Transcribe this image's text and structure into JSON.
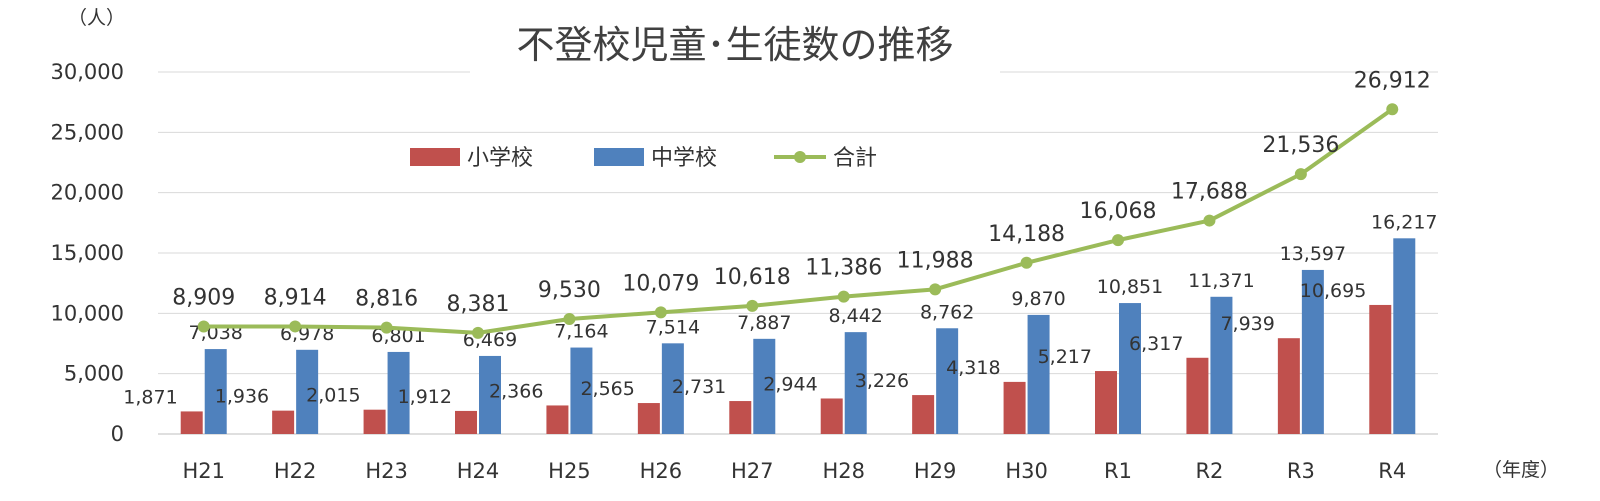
{
  "chart_data": {
    "type": "bar",
    "title": "不登校児童･生徒数の推移",
    "y_unit_label": "（人）",
    "x_unit_label": "（年度）",
    "categories": [
      "H21",
      "H22",
      "H23",
      "H24",
      "H25",
      "H26",
      "H27",
      "H28",
      "H29",
      "H30",
      "R1",
      "R2",
      "R3",
      "R4"
    ],
    "ylim": [
      0,
      30000
    ],
    "yticks": [
      0,
      5000,
      10000,
      15000,
      20000,
      25000,
      30000
    ],
    "ytick_labels": [
      "0",
      "5,000",
      "10,000",
      "15,000",
      "20,000",
      "25,000",
      "30,000"
    ],
    "grid": true,
    "legend_position": "top-center",
    "series": [
      {
        "name": "小学校",
        "type": "bar",
        "color": "#c0504d",
        "values": [
          1871,
          1936,
          2015,
          1912,
          2366,
          2565,
          2731,
          2944,
          3226,
          4318,
          5217,
          6317,
          7939,
          10695
        ],
        "labels": [
          "1,871",
          "1,936",
          "2,015",
          "1,912",
          "2,366",
          "2,565",
          "2,731",
          "2,944",
          "3,226",
          "4,318",
          "5,217",
          "6,317",
          "7,939",
          "10,695"
        ]
      },
      {
        "name": "中学校",
        "type": "bar",
        "color": "#4f81bd",
        "values": [
          7038,
          6978,
          6801,
          6469,
          7164,
          7514,
          7887,
          8442,
          8762,
          9870,
          10851,
          11371,
          13597,
          16217
        ],
        "labels": [
          "7,038",
          "6,978",
          "6,801",
          "6,469",
          "7,164",
          "7,514",
          "7,887",
          "8,442",
          "8,762",
          "9,870",
          "10,851",
          "11,371",
          "13,597",
          "16,217"
        ]
      },
      {
        "name": "合計",
        "type": "line",
        "color": "#9bbb59",
        "values": [
          8909,
          8914,
          8816,
          8381,
          9530,
          10079,
          10618,
          11386,
          11988,
          14188,
          16068,
          17688,
          21536,
          26912
        ],
        "labels": [
          "8,909",
          "8,914",
          "8,816",
          "8,381",
          "9,530",
          "10,079",
          "10,618",
          "11,386",
          "11,988",
          "14,188",
          "16,068",
          "17,688",
          "21,536",
          "26,912"
        ]
      }
    ]
  }
}
